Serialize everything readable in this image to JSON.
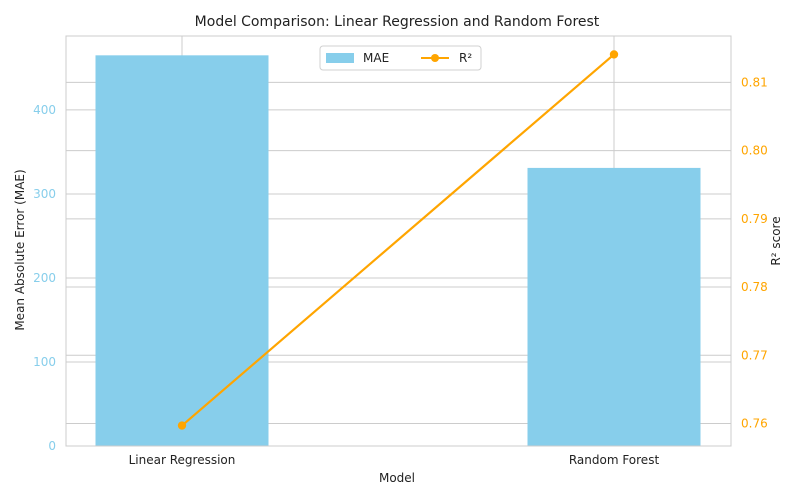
{
  "chart_data": {
    "type": "bar",
    "title": "Model Comparison: Linear Regression and Random Forest",
    "xlabel": "Model",
    "categories": [
      "Linear Regression",
      "Random Forest"
    ],
    "series": [
      {
        "name": "MAE",
        "type": "bar",
        "axis": "left",
        "ylabel": "Mean Absolute Error (MAE)",
        "ylim": [
          0,
          488
        ],
        "yticks": [
          0,
          100,
          200,
          300,
          400
        ],
        "values": [
          465,
          331
        ],
        "color": "#87CEEB"
      },
      {
        "name": "R²",
        "type": "line",
        "axis": "right",
        "ylabel": "R² score",
        "ylim": [
          0.7567,
          0.8168
        ],
        "yticks": [
          0.76,
          0.77,
          0.78,
          0.79,
          0.8,
          0.81
        ],
        "values": [
          0.7597,
          0.8141
        ],
        "color": "#FFA500"
      }
    ],
    "legend": "top-center",
    "grid": true
  }
}
